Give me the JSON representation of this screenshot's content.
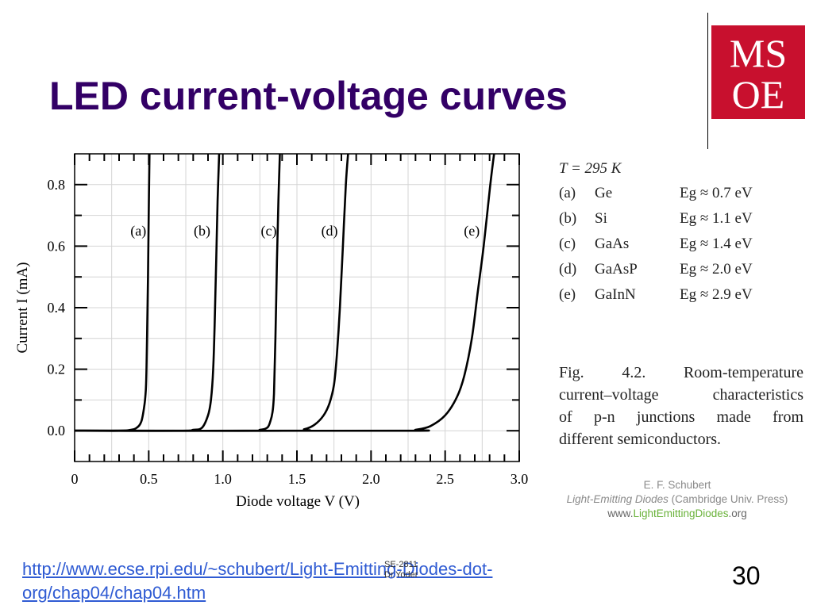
{
  "slide": {
    "title": "LED current-voltage curves",
    "link_line1": "http://www.ecse.rpi.edu/~schubert/Light-Emitting-Diodes-dot-",
    "link_line2": "org/chap04/chap04.htm",
    "footer_course": "SE-2811",
    "footer_author": "Dr.Yoder",
    "page_number": "30",
    "logo_top": "MS",
    "logo_bottom": "OE",
    "logo_color": "#c8102e",
    "title_color": "#330066",
    "link_color": "#2f5bd3"
  },
  "chart_data": {
    "type": "line",
    "xlabel": "Diode voltage  V  (V)",
    "ylabel": "Current  I  (mA)",
    "xlim": [
      0,
      3.0
    ],
    "ylim": [
      -0.1,
      0.9
    ],
    "xticks": [
      "0",
      "0.5",
      "1.0",
      "1.5",
      "2.0",
      "2.5",
      "3.0"
    ],
    "yticks": [
      "0.0",
      "0.2",
      "0.4",
      "0.6",
      "0.8"
    ],
    "grid": true,
    "series": [
      {
        "name": "(a)",
        "label_x": 0.43,
        "points": [
          [
            0,
            0
          ],
          [
            0.3,
            0
          ],
          [
            0.38,
            0.003
          ],
          [
            0.42,
            0.01
          ],
          [
            0.45,
            0.03
          ],
          [
            0.47,
            0.08
          ],
          [
            0.48,
            0.13
          ],
          [
            0.485,
            0.2
          ],
          [
            0.49,
            0.35
          ],
          [
            0.495,
            0.5
          ],
          [
            0.5,
            0.7
          ],
          [
            0.505,
            0.9
          ]
        ]
      },
      {
        "name": "(b)",
        "label_x": 0.86,
        "points": [
          [
            0,
            0
          ],
          [
            0.7,
            0
          ],
          [
            0.8,
            0.003
          ],
          [
            0.86,
            0.01
          ],
          [
            0.9,
            0.05
          ],
          [
            0.92,
            0.1
          ],
          [
            0.935,
            0.2
          ],
          [
            0.945,
            0.35
          ],
          [
            0.955,
            0.55
          ],
          [
            0.965,
            0.75
          ],
          [
            0.975,
            0.9
          ]
        ]
      },
      {
        "name": "(c)",
        "label_x": 1.31,
        "points": [
          [
            0,
            0
          ],
          [
            1.15,
            0
          ],
          [
            1.25,
            0.003
          ],
          [
            1.3,
            0.01
          ],
          [
            1.32,
            0.03
          ],
          [
            1.335,
            0.06
          ],
          [
            1.345,
            0.12
          ],
          [
            1.355,
            0.3
          ],
          [
            1.365,
            0.55
          ],
          [
            1.375,
            0.75
          ],
          [
            1.385,
            0.9
          ]
        ]
      },
      {
        "name": "(d)",
        "label_x": 1.72,
        "points": [
          [
            0,
            0
          ],
          [
            1.45,
            0
          ],
          [
            1.55,
            0.005
          ],
          [
            1.62,
            0.02
          ],
          [
            1.68,
            0.05
          ],
          [
            1.72,
            0.09
          ],
          [
            1.75,
            0.15
          ],
          [
            1.77,
            0.25
          ],
          [
            1.79,
            0.4
          ],
          [
            1.81,
            0.6
          ],
          [
            1.83,
            0.8
          ],
          [
            1.845,
            0.9
          ]
        ]
      },
      {
        "name": "(e)",
        "label_x": 2.68,
        "points": [
          [
            0,
            0
          ],
          [
            2.2,
            0
          ],
          [
            2.3,
            0.003
          ],
          [
            2.4,
            0.015
          ],
          [
            2.5,
            0.05
          ],
          [
            2.58,
            0.11
          ],
          [
            2.63,
            0.18
          ],
          [
            2.68,
            0.3
          ],
          [
            2.72,
            0.45
          ],
          [
            2.76,
            0.6
          ],
          [
            2.8,
            0.78
          ],
          [
            2.83,
            0.9
          ]
        ]
      }
    ]
  },
  "legend": {
    "temperature": "T = 295 K",
    "rows": [
      {
        "tag": "(a)",
        "material": "Ge",
        "eg": "Eg ≈ 0.7 eV"
      },
      {
        "tag": "(b)",
        "material": "Si",
        "eg": "Eg ≈ 1.1 eV"
      },
      {
        "tag": "(c)",
        "material": "GaAs",
        "eg": "Eg ≈ 1.4 eV"
      },
      {
        "tag": "(d)",
        "material": "GaAsP",
        "eg": "Eg ≈ 2.0 eV"
      },
      {
        "tag": "(e)",
        "material": "GaInN",
        "eg": "Eg ≈ 2.9 eV"
      }
    ]
  },
  "caption": {
    "line1": "Fig.  4.2.  Room-temperature",
    "line2": "current–voltage  characteristics",
    "line3": "of  p-n  junctions  made  from",
    "line4": "different semiconductors."
  },
  "credit": {
    "author": "E. F. Schubert",
    "book": "Light-Emitting Diodes",
    "publisher": " (Cambridge Univ. Press)",
    "site_prefix": "www.",
    "site_brand": "LightEmittingDiodes",
    "site_suffix": ".org"
  }
}
